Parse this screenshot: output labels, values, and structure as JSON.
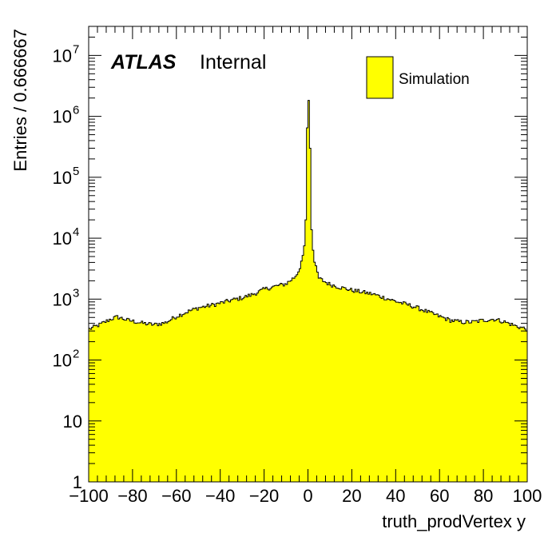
{
  "chart_data": {
    "type": "histogram",
    "title": "",
    "xlabel": "truth_prodVertex y",
    "ylabel": "Entries / 0.666667",
    "bin_width": 0.666667,
    "xlim": [
      -100,
      100
    ],
    "ylim": [
      1,
      30000000
    ],
    "y_scale": "log",
    "grid": false,
    "fill_color": "#ffff00",
    "line_color": "#000000",
    "x_ticks": [
      -100,
      -80,
      -60,
      -40,
      -20,
      0,
      20,
      40,
      60,
      80,
      100
    ],
    "x_tick_labels": [
      "−100",
      "−80",
      "−60",
      "−40",
      "−20",
      "0",
      "20",
      "40",
      "60",
      "80",
      "100"
    ],
    "y_ticks": [
      {
        "value": 1,
        "base": "1",
        "exp": ""
      },
      {
        "value": 10,
        "base": "10",
        "exp": ""
      },
      {
        "value": 100,
        "base": "10",
        "exp": "2"
      },
      {
        "value": 1000,
        "base": "10",
        "exp": "3"
      },
      {
        "value": 10000,
        "base": "10",
        "exp": "4"
      },
      {
        "value": 100000,
        "base": "10",
        "exp": "5"
      },
      {
        "value": 1000000,
        "base": "10",
        "exp": "6"
      },
      {
        "value": 10000000,
        "base": "10",
        "exp": "7"
      }
    ],
    "series": [
      {
        "name": "Simulation",
        "profile": [
          [
            -100,
            320
          ],
          [
            -95,
            380
          ],
          [
            -90,
            470
          ],
          [
            -87,
            510
          ],
          [
            -82,
            450
          ],
          [
            -75,
            400
          ],
          [
            -70,
            380
          ],
          [
            -65,
            410
          ],
          [
            -60,
            520
          ],
          [
            -55,
            620
          ],
          [
            -50,
            720
          ],
          [
            -45,
            780
          ],
          [
            -40,
            860
          ],
          [
            -35,
            960
          ],
          [
            -30,
            1050
          ],
          [
            -25,
            1200
          ],
          [
            -20,
            1450
          ],
          [
            -15,
            1620
          ],
          [
            -10,
            1780
          ],
          [
            -6,
            2300
          ],
          [
            -4,
            3000
          ],
          [
            -3,
            4200
          ],
          [
            -2,
            5800
          ],
          [
            -1.5,
            8500
          ],
          [
            -1,
            20000
          ],
          [
            -0.5,
            400000
          ],
          [
            0,
            1700000
          ],
          [
            0.5,
            1900000
          ],
          [
            1,
            300000
          ],
          [
            1.5,
            18000
          ],
          [
            2,
            8000
          ],
          [
            3,
            4000
          ],
          [
            5,
            2200
          ],
          [
            8,
            1900
          ],
          [
            10,
            1750
          ],
          [
            15,
            1550
          ],
          [
            20,
            1400
          ],
          [
            25,
            1300
          ],
          [
            30,
            1200
          ],
          [
            35,
            1050
          ],
          [
            40,
            920
          ],
          [
            45,
            820
          ],
          [
            50,
            720
          ],
          [
            55,
            610
          ],
          [
            60,
            520
          ],
          [
            65,
            450
          ],
          [
            70,
            420
          ],
          [
            75,
            420
          ],
          [
            80,
            450
          ],
          [
            85,
            470
          ],
          [
            90,
            420
          ],
          [
            95,
            360
          ],
          [
            100,
            320
          ]
        ]
      }
    ],
    "annotations": {
      "atlas": "ATLAS",
      "internal": "Internal"
    },
    "legend": {
      "position": "top-right",
      "entries": [
        "Simulation"
      ]
    }
  }
}
